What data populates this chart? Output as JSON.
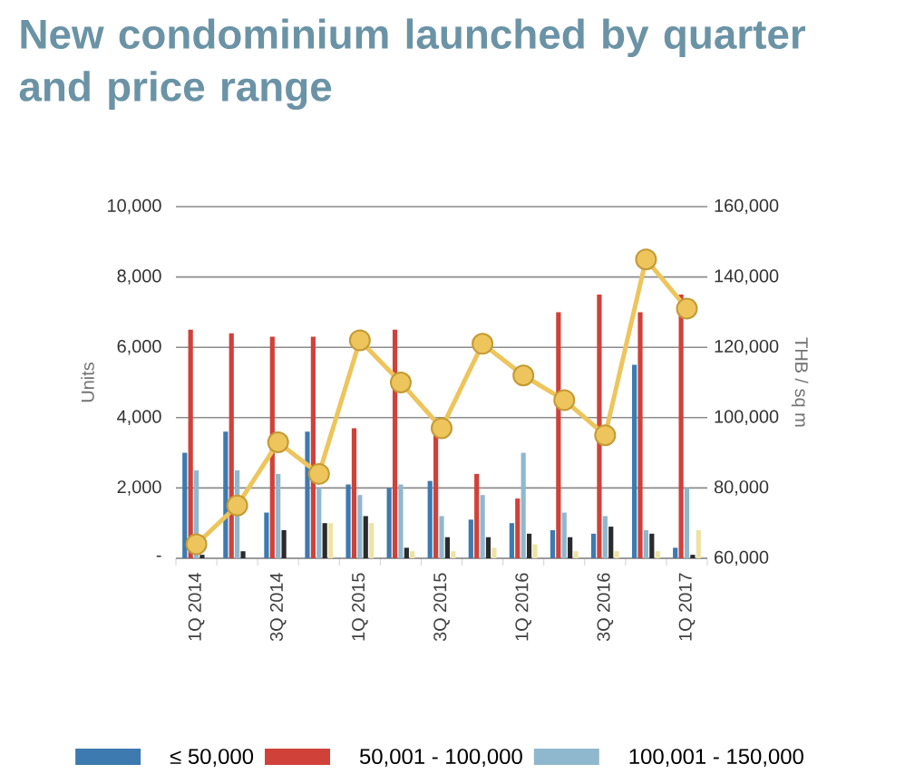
{
  "chart_data": {
    "type": "bar",
    "title": "New condominium launched by quarter and price range",
    "categories": [
      "1Q 2014",
      null,
      "3Q 2014",
      null,
      "1Q 2015",
      null,
      "3Q 2015",
      null,
      "1Q 2016",
      null,
      "3Q 2016",
      null,
      "1Q 2017"
    ],
    "series": [
      {
        "name": "≤ 50,000",
        "color": "#3d7ab0",
        "values": [
          3000,
          3600,
          1300,
          3600,
          2100,
          2000,
          2200,
          1100,
          1000,
          800,
          700,
          5500,
          300
        ]
      },
      {
        "name": "50,001 - 100,000",
        "color": "#d0413a",
        "values": [
          6500,
          6400,
          6300,
          6300,
          3700,
          6500,
          3500,
          2400,
          1700,
          7000,
          7500,
          7000,
          7500
        ]
      },
      {
        "name": "100,001 - 150,000",
        "color": "#8fb8cf",
        "values": [
          2500,
          2500,
          2400,
          2000,
          1800,
          2100,
          1200,
          1800,
          3000,
          1300,
          1200,
          800,
          2000
        ]
      },
      {
        "color": "#2b2b2b",
        "values": [
          100,
          200,
          800,
          1000,
          1200,
          300,
          600,
          600,
          700,
          600,
          900,
          700,
          100
        ]
      },
      {
        "color": "#ece3a4",
        "values": [
          0,
          0,
          0,
          1000,
          1000,
          200,
          200,
          300,
          400,
          200,
          200,
          200,
          800
        ]
      },
      {
        "type": "line",
        "axis": "y2",
        "color": "#edc55c",
        "values": [
          64000,
          75000,
          93000,
          84000,
          122000,
          110000,
          97000,
          121000,
          112000,
          105000,
          95000,
          145000,
          131000
        ]
      }
    ],
    "ylabel": "Units",
    "y2label": "THB / sq m",
    "ylim": [
      0,
      10000
    ],
    "yticks": [
      {
        "value": 0,
        "label": "-"
      },
      {
        "value": 2000,
        "label": "2,000"
      },
      {
        "value": 4000,
        "label": "4,000"
      },
      {
        "value": 6000,
        "label": "6,000"
      },
      {
        "value": 8000,
        "label": "8,000"
      },
      {
        "value": 10000,
        "label": "10,000"
      }
    ],
    "y2lim": [
      60000,
      160000
    ],
    "y2ticks": [
      {
        "value": 60000,
        "label": "60,000"
      },
      {
        "value": 80000,
        "label": "80,000"
      },
      {
        "value": 100000,
        "label": "100,000"
      },
      {
        "value": 120000,
        "label": "120,000"
      },
      {
        "value": 140000,
        "label": "140,000"
      },
      {
        "value": 160000,
        "label": "160,000"
      }
    ],
    "grid": "y",
    "legend": "bottom",
    "marker": "circle"
  }
}
